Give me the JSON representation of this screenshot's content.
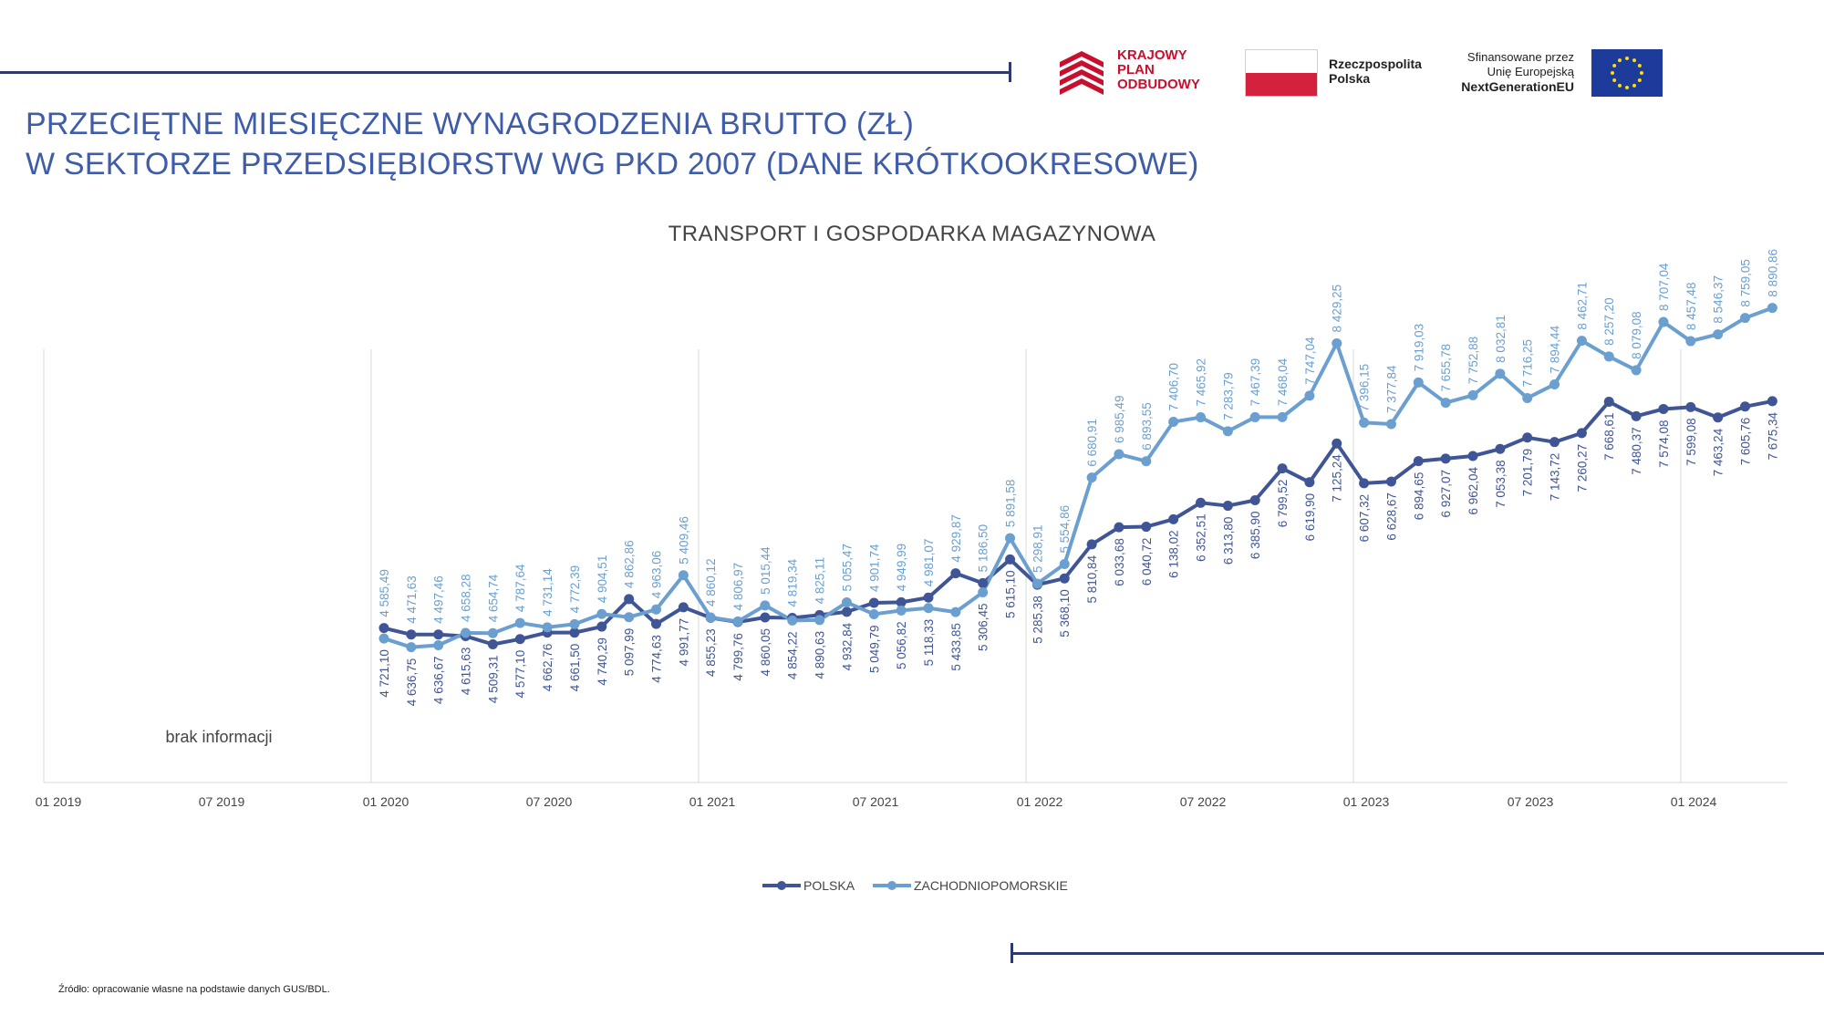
{
  "header": {
    "title_line1": "PRZECIĘTNE MIESIĘCZNE WYNAGRODZENIA BRUTTO (ZŁ)",
    "title_line2": "W SEKTORZE PRZEDSIĘBIORSTW WG PKD 2007 (DANE KRÓTKOOKRESOWE)"
  },
  "logos": {
    "kpo_line1": "KRAJOWY",
    "kpo_line2": "PLAN",
    "kpo_line3": "ODBUDOWY",
    "rp_line1": "Rzeczpospolita",
    "rp_line2": "Polska",
    "eu_line1": "Sfinansowane przez",
    "eu_line2": "Unię Europejską",
    "eu_line3": "NextGenerationEU"
  },
  "source": "Źródło: opracowanie własne na podstawie danych GUS/BDL.",
  "colors": {
    "polska": "#3f5595",
    "zachodniopomorskie": "#6a9fd0",
    "title": "#3f5ca8"
  },
  "chart_data": {
    "type": "line",
    "title": "TRANSPORT I GOSPODARKA MAGAZYNOWA",
    "x_ticks": [
      "01 2019",
      "07 2019",
      "01 2020",
      "07 2020",
      "01 2021",
      "07 2021",
      "01 2022",
      "07 2022",
      "01 2023",
      "07 2023",
      "01 2024"
    ],
    "x_start": "01 2019",
    "x_end": "04 2024",
    "missing_range": [
      "01 2019",
      "12 2019"
    ],
    "missing_label": "brak informacji",
    "series_start": "01 2020",
    "legend_position": "bottom",
    "grid": "vertical at January",
    "series": [
      {
        "name": "POLSKA",
        "values": [
          4721.1,
          4636.75,
          4636.67,
          4615.63,
          4509.31,
          4577.1,
          4662.76,
          4661.5,
          4740.29,
          5097.99,
          4774.63,
          4991.77,
          4855.23,
          4799.76,
          4860.05,
          4854.22,
          4890.63,
          4932.84,
          5049.79,
          5056.82,
          5118.33,
          5433.85,
          5306.45,
          5615.1,
          5285.38,
          5368.1,
          5810.84,
          6033.68,
          6040.72,
          6138.02,
          6352.51,
          6313.8,
          6385.9,
          6799.52,
          6619.9,
          7125.24,
          6607.32,
          6628.67,
          6894.65,
          6927.07,
          6962.04,
          7053.38,
          7201.79,
          7143.72,
          7260.27,
          7668.61,
          7480.37,
          7574.08,
          7599.08,
          7463.24,
          7605.76,
          7675.34
        ],
        "labels": [
          "4 721,10",
          "4 636,75",
          "4 636,67",
          "4 615,63",
          "4 509,31",
          "4 577,10",
          "4 662,76",
          "4 661,50",
          "4 740,29",
          "5 097,99",
          "4 774,63",
          "4 991,77",
          "4 855,23",
          "4 799,76",
          "4 860,05",
          "4 854,22",
          "4 890,63",
          "4 932,84",
          "5 049,79",
          "5 056,82",
          "5 118,33",
          "5 433,85",
          "5 306,45",
          "5 615,10",
          "5 285,38",
          "5 368,10",
          "5 810,84",
          "6 033,68",
          "6 040,72",
          "6 138,02",
          "6 352,51",
          "6 313,80",
          "6 385,90",
          "6 799,52",
          "6 619,90",
          "7 125,24",
          "6 607,32",
          "6 628,67",
          "6 894,65",
          "6 927,07",
          "6 962,04",
          "7 053,38",
          "7 201,79",
          "7 143,72",
          "7 260,27",
          "7 668,61",
          "7 480,37",
          "7 574,08",
          "7 599,08",
          "7 463,24",
          "7 605,76",
          "7 675,34"
        ]
      },
      {
        "name": "ZACHODNIOPOMORSKIE",
        "values": [
          4585.49,
          4471.63,
          4497.46,
          4658.28,
          4654.74,
          4787.64,
          4731.14,
          4772.39,
          4904.51,
          4862.86,
          4963.06,
          5409.46,
          4860.12,
          4806.97,
          5015.44,
          4819.34,
          4825.11,
          5055.47,
          4901.74,
          4949.99,
          4981.07,
          4929.87,
          5186.5,
          5891.58,
          5298.91,
          5554.86,
          6680.91,
          6985.49,
          6893.55,
          7406.7,
          7465.92,
          7283.79,
          7467.39,
          7468.04,
          7747.04,
          8429.25,
          7396.15,
          7377.84,
          7919.03,
          7655.78,
          7752.88,
          8032.81,
          7716.25,
          7894.44,
          8462.71,
          8257.2,
          8079.08,
          8707.04,
          8457.48,
          8546.37,
          8759.05,
          8890.86
        ],
        "labels": [
          "4 585,49",
          "4 471,63",
          "4 497,46",
          "4 658,28",
          "4 654,74",
          "4 787,64",
          "4 731,14",
          "4 772,39",
          "4 904,51",
          "4 862,86",
          "4 963,06",
          "5 409,46",
          "4 860,12",
          "4 806,97",
          "5 015,44",
          "4 819,34",
          "4 825,11",
          "5 055,47",
          "4 901,74",
          "4 949,99",
          "4 981,07",
          "4 929,87",
          "5 186,50",
          "5 891,58",
          "5 298,91",
          "5 554,86",
          "6 680,91",
          "6 985,49",
          "6 893,55",
          "7 406,70",
          "7 465,92",
          "7 283,79",
          "7 467,39",
          "7 468,04",
          "7 747,04",
          "8 429,25",
          "7 396,15",
          "7 377,84",
          "7 919,03",
          "7 655,78",
          "7 752,88",
          "8 032,81",
          "7 716,25",
          "7 894,44",
          "8 462,71",
          "8 257,20",
          "8 079,08",
          "8 707,04",
          "8 457,48",
          "8 546,37",
          "8 759,05",
          "8 890,86"
        ]
      }
    ]
  }
}
